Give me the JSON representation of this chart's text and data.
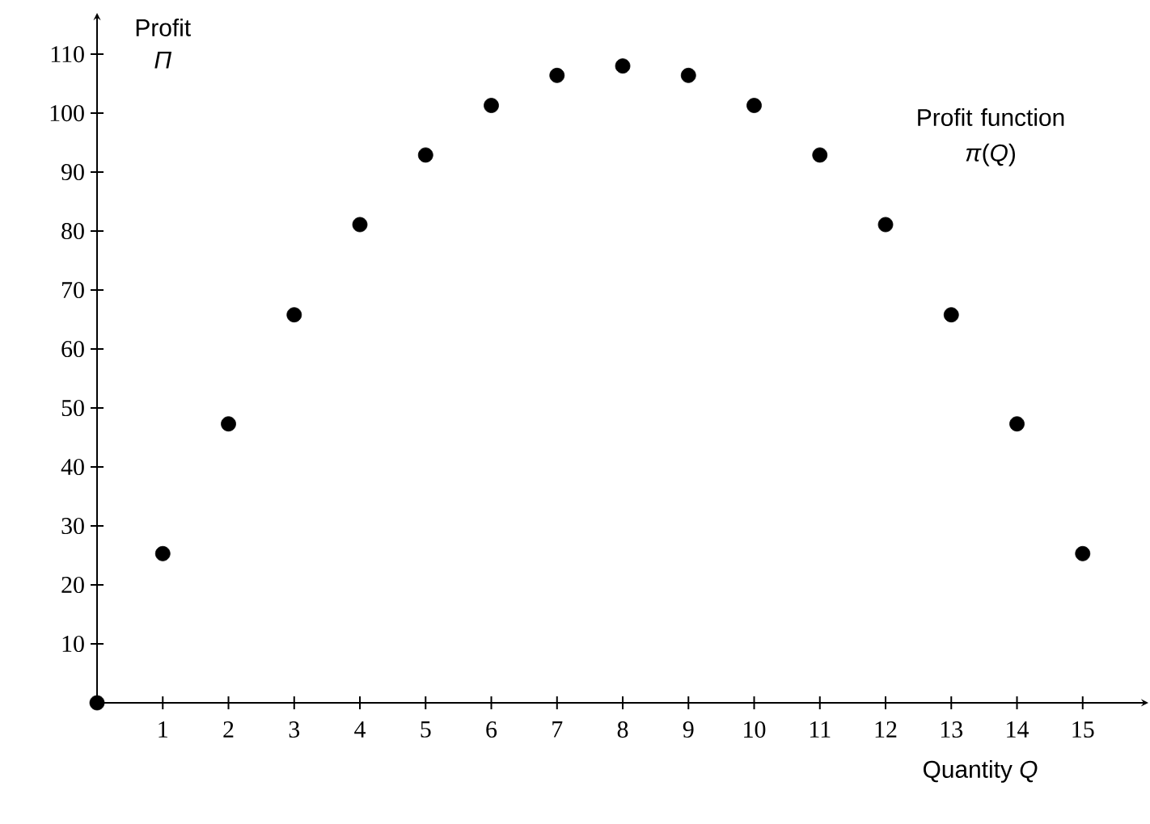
{
  "chart_data": {
    "type": "scatter",
    "xlabel": "Quantity *Q*",
    "ylabel": "Profit *Π*",
    "annotations": [
      "Profit function *π*(*Q*)"
    ],
    "x": [
      0,
      1,
      2,
      3,
      4,
      5,
      6,
      7,
      8,
      9,
      10,
      11,
      12,
      13,
      14,
      15
    ],
    "series": [
      {
        "color": "#000000",
        "values": [
          0,
          25.3,
          47.3,
          65.8,
          81.1,
          92.9,
          101.3,
          106.4,
          108,
          106.4,
          101.3,
          92.9,
          81.1,
          65.8,
          47.3,
          25.3
        ]
      }
    ],
    "marker": "circle",
    "grid": false,
    "xlim": [
      0,
      16
    ],
    "ylim": [
      0,
      117
    ],
    "xticks": [
      1,
      2,
      3,
      4,
      5,
      6,
      7,
      8,
      9,
      10,
      11,
      12,
      13,
      14,
      15
    ],
    "yticks": [
      10,
      20,
      30,
      40,
      50,
      60,
      70,
      80,
      90,
      100,
      110
    ]
  }
}
